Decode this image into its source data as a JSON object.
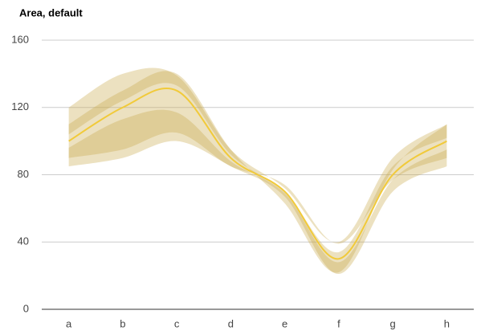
{
  "chart_data": {
    "type": "area",
    "title": "Area, default",
    "categories": [
      "a",
      "b",
      "c",
      "d",
      "e",
      "f",
      "g",
      "h"
    ],
    "values": [
      100,
      120,
      130,
      90,
      70,
      30,
      80,
      100
    ],
    "color": "#f1ca3a",
    "interval_color": "#c9a84a",
    "intervals": [
      {
        "values": [
          90,
          95,
          105,
          85,
          74,
          39,
          77,
          90
        ]
      },
      {
        "values": [
          110,
          130,
          140,
          95,
          63,
          22,
          83,
          110
        ]
      },
      {
        "values": [
          85,
          90,
          100,
          85,
          67,
          21,
          70,
          85
        ]
      },
      {
        "values": [
          96,
          113,
          117,
          88,
          69,
          28,
          77,
          95
        ]
      },
      {
        "values": [
          104,
          124,
          133,
          92,
          70,
          34,
          85,
          102
        ]
      },
      {
        "values": [
          120,
          140,
          139,
          95,
          72,
          40,
          90,
          110
        ]
      }
    ],
    "ylim": [
      0,
      160
    ],
    "yticks": [
      0,
      40,
      80,
      120,
      160
    ],
    "grid": true
  }
}
